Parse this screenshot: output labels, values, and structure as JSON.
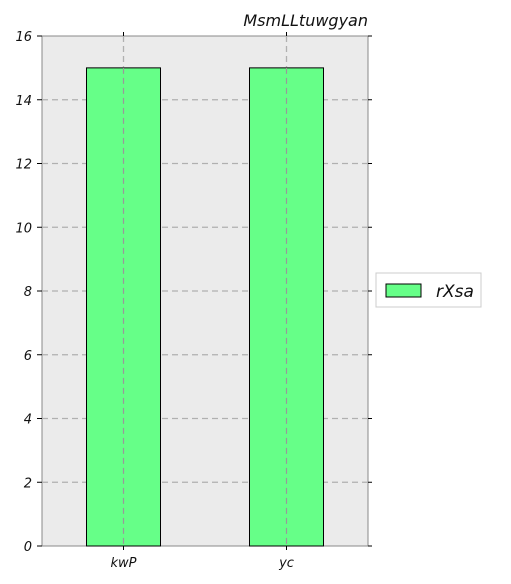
{
  "chart_data": {
    "type": "bar",
    "title": "MsmLLtuwgyan",
    "categories": [
      "kwP",
      "yc"
    ],
    "series": [
      {
        "name": "rXsa",
        "values": [
          15,
          15
        ],
        "color": "#66ff88"
      }
    ],
    "ylim": [
      0,
      16
    ],
    "yticks": [
      0,
      2,
      4,
      6,
      8,
      10,
      12,
      14,
      16
    ],
    "grid": true,
    "legend": "right",
    "background": "#ebebeb"
  }
}
